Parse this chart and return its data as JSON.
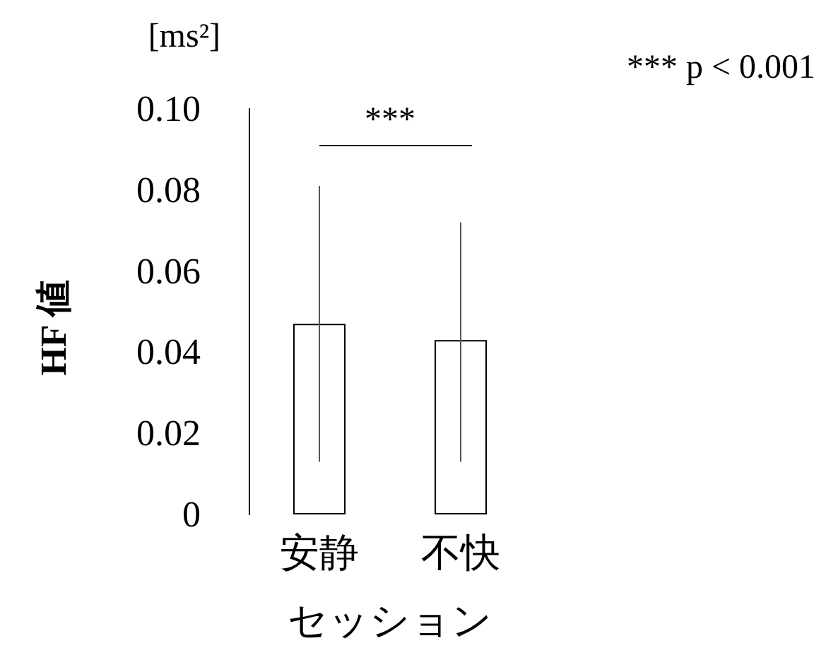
{
  "chart_data": {
    "type": "bar",
    "xlabel": "セッション",
    "ylabel": "HF 値",
    "categories": [
      "安静",
      "不快"
    ],
    "series": [
      {
        "color": "#ffffff",
        "values": [
          0.047,
          0.043
        ],
        "errors": [
          [
            0.013,
            0.081
          ],
          [
            0.013,
            0.072
          ]
        ]
      }
    ],
    "ylim": [
      0,
      0.1
    ],
    "yticks": [
      0,
      0.02,
      0.04,
      0.06,
      0.08,
      {
        "value": 0.1,
        "label": "0.10"
      }
    ],
    "grid": false,
    "annotations": [
      "[ms²]",
      "***",
      "*** p < 0.001"
    ]
  }
}
